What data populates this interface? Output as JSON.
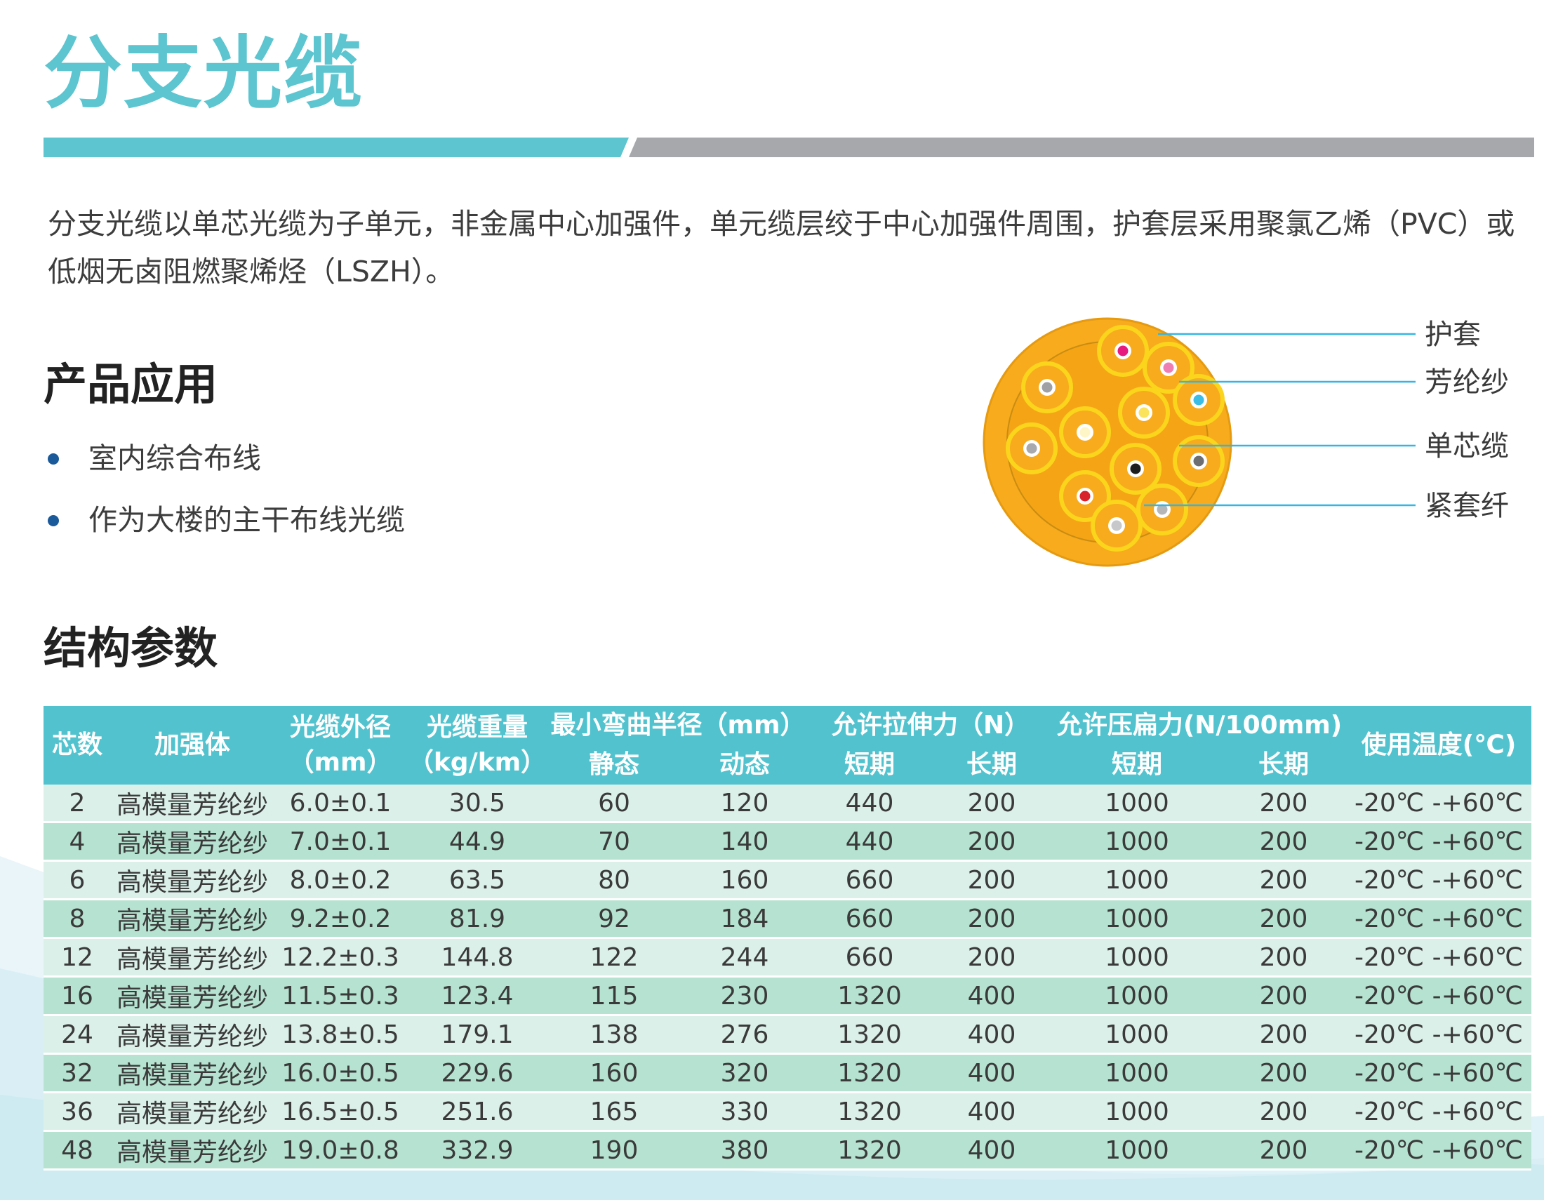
{
  "title": "分支光缆",
  "intro": "分支光缆以单芯光缆为子单元，非金属中心加强件，单元缆层绞于中心加强件周围，护套层采用聚氯乙烯（PVC）或低烟无卤阻燃聚烯烃（LSZH）。",
  "applications": {
    "heading": "产品应用",
    "items": [
      "室内综合布线",
      "作为大楼的主干布线光缆"
    ]
  },
  "diagram": {
    "labels": [
      "护套",
      "芳纶纱",
      "单芯缆",
      "紧套纤"
    ],
    "colors": {
      "sheath": "#f7ab1d",
      "aramid": "#fad51c",
      "fibers": [
        "#e6197f",
        "#ef7fb3",
        "#9ea0a3",
        "#3dbde6",
        "#fbe45b",
        "#fff6c8",
        "#a7a9ac",
        "#6d6e71",
        "#1e1e1e",
        "#d8232a",
        "#c7c8ca",
        "#b5b6b8"
      ]
    }
  },
  "structure": {
    "heading": "结构参数",
    "headers": {
      "cores": "芯数",
      "strength": "加强体",
      "diameter": "光缆外径（mm）",
      "weight": "光缆重量（kg/km）",
      "bend": "最小弯曲半径（mm）",
      "bend_static": "静态",
      "bend_dynamic": "动态",
      "tensile": "允许拉伸力（N）",
      "tensile_short": "短期",
      "tensile_long": "长期",
      "crush": "允许压扁力(N/100mm)",
      "crush_short": "短期",
      "crush_long": "长期",
      "temp": "使用温度(℃)"
    },
    "rows": [
      [
        "2",
        "高模量芳纶纱",
        "6.0±0.1",
        "30.5",
        "60",
        "120",
        "440",
        "200",
        "1000",
        "200",
        "-20℃ -+60℃"
      ],
      [
        "4",
        "高模量芳纶纱",
        "7.0±0.1",
        "44.9",
        "70",
        "140",
        "440",
        "200",
        "1000",
        "200",
        "-20℃ -+60℃"
      ],
      [
        "6",
        "高模量芳纶纱",
        "8.0±0.2",
        "63.5",
        "80",
        "160",
        "660",
        "200",
        "1000",
        "200",
        "-20℃ -+60℃"
      ],
      [
        "8",
        "高模量芳纶纱",
        "9.2±0.2",
        "81.9",
        "92",
        "184",
        "660",
        "200",
        "1000",
        "200",
        "-20℃ -+60℃"
      ],
      [
        "12",
        "高模量芳纶纱",
        "12.2±0.3",
        "144.8",
        "122",
        "244",
        "660",
        "200",
        "1000",
        "200",
        "-20℃ -+60℃"
      ],
      [
        "16",
        "高模量芳纶纱",
        "11.5±0.3",
        "123.4",
        "115",
        "230",
        "1320",
        "400",
        "1000",
        "200",
        "-20℃ -+60℃"
      ],
      [
        "24",
        "高模量芳纶纱",
        "13.8±0.5",
        "179.1",
        "138",
        "276",
        "1320",
        "400",
        "1000",
        "200",
        "-20℃ -+60℃"
      ],
      [
        "32",
        "高模量芳纶纱",
        "16.0±0.5",
        "229.6",
        "160",
        "320",
        "1320",
        "400",
        "1000",
        "200",
        "-20℃ -+60℃"
      ],
      [
        "36",
        "高模量芳纶纱",
        "16.5±0.5",
        "251.6",
        "165",
        "330",
        "1320",
        "400",
        "1000",
        "200",
        "-20℃ -+60℃"
      ],
      [
        "48",
        "高模量芳纶纱",
        "19.0±0.8",
        "332.9",
        "190",
        "380",
        "1320",
        "400",
        "1000",
        "200",
        "-20℃ -+60℃"
      ]
    ]
  }
}
